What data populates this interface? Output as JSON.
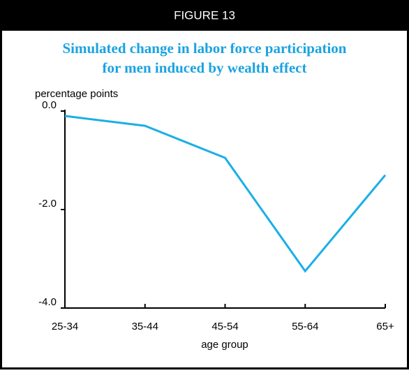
{
  "header": "FIGURE 13",
  "chart_data": {
    "type": "line",
    "title": "Simulated change in labor force participation",
    "subtitle": "for men induced by wealth effect",
    "y_label": "percentage points",
    "x_label": "age group",
    "categories": [
      "25-34",
      "35-44",
      "45-54",
      "55-64",
      "65+"
    ],
    "series": [
      {
        "name": "men",
        "color": "#1aafe6",
        "values": [
          -0.1,
          -0.3,
          -0.95,
          -3.25,
          -1.3
        ]
      }
    ],
    "ylim": [
      -4,
      0
    ],
    "yticks": [
      {
        "value": 0,
        "label": "0.0"
      },
      {
        "value": -2,
        "label": "-2.0"
      },
      {
        "value": -4,
        "label": "-4.0"
      }
    ]
  }
}
